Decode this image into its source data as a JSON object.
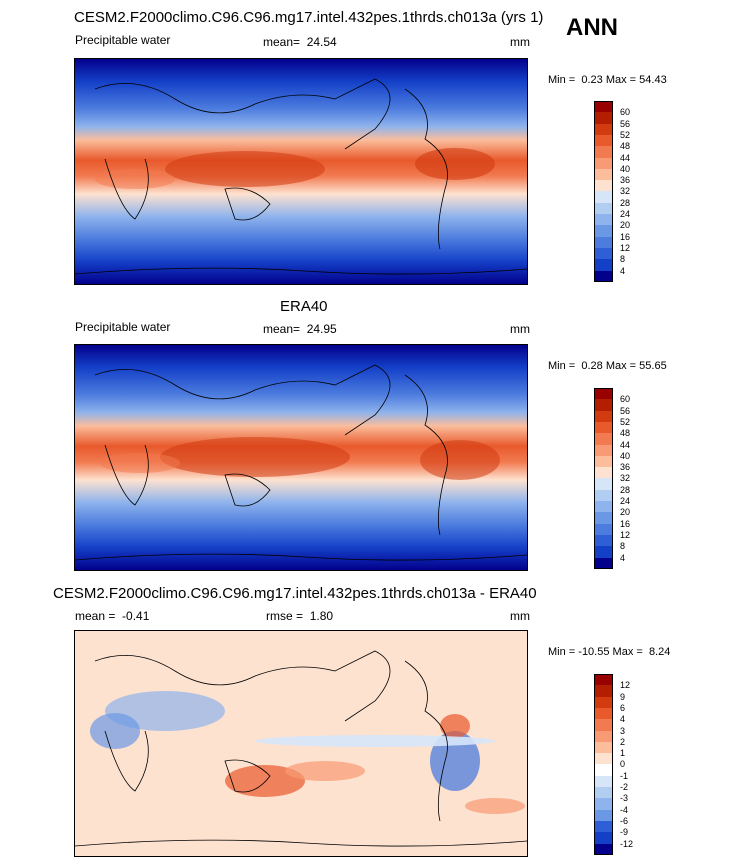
{
  "season_label": "ANN",
  "panels": [
    {
      "id": "model",
      "title": "CESM2.F2000climo.C96.C96.mg17.intel.432pes.1thrds.ch013a (yrs 1)",
      "variable": "Precipitable water",
      "mean_label": "mean=",
      "mean_value": "24.54",
      "units": "mm",
      "min_label": "Min =",
      "min_value": "0.23",
      "max_label": "Max =",
      "max_value": "54.43",
      "levels": [
        "60",
        "56",
        "52",
        "48",
        "44",
        "40",
        "36",
        "32",
        "28",
        "24",
        "20",
        "16",
        "12",
        "8",
        "4"
      ],
      "colors": [
        "#990000",
        "#b31d00",
        "#d23a10",
        "#e85a2c",
        "#f27a50",
        "#f89a74",
        "#fbbd9c",
        "#fde2d0",
        "#d6e6f8",
        "#b2cdf2",
        "#8fb3ec",
        "#6b98e4",
        "#4c7cde",
        "#2f5fd6",
        "#1440c8",
        "#03008c"
      ]
    },
    {
      "id": "obs",
      "title": "ERA40",
      "variable": "Precipitable water",
      "mean_label": "mean=",
      "mean_value": "24.95",
      "units": "mm",
      "min_label": "Min =",
      "min_value": "0.28",
      "max_label": "Max =",
      "max_value": "55.65",
      "levels": [
        "60",
        "56",
        "52",
        "48",
        "44",
        "40",
        "36",
        "32",
        "28",
        "24",
        "20",
        "16",
        "12",
        "8",
        "4"
      ],
      "colors": [
        "#990000",
        "#b31d00",
        "#d23a10",
        "#e85a2c",
        "#f27a50",
        "#f89a74",
        "#fbbd9c",
        "#fde2d0",
        "#d6e6f8",
        "#b2cdf2",
        "#8fb3ec",
        "#6b98e4",
        "#4c7cde",
        "#2f5fd6",
        "#1440c8",
        "#03008c"
      ]
    },
    {
      "id": "diff",
      "title": "CESM2.F2000climo.C96.C96.mg17.intel.432pes.1thrds.ch013a - ERA40",
      "mean_label": "mean =",
      "mean_value": "-0.41",
      "rmse_label": "rmse =",
      "rmse_value": "1.80",
      "units": "mm",
      "min_label": "Min =",
      "min_value": "-10.55",
      "max_label": "Max =",
      "max_value": "8.24",
      "levels": [
        "12",
        "9",
        "6",
        "4",
        "3",
        "2",
        "1",
        "0",
        "-1",
        "-2",
        "-3",
        "-4",
        "-6",
        "-9",
        "-12"
      ],
      "colors": [
        "#990000",
        "#b31d00",
        "#d23a10",
        "#e85a2c",
        "#f27a50",
        "#f89a74",
        "#fbbd9c",
        "#fde2d0",
        "#ffffff",
        "#d6e6f8",
        "#b2cdf2",
        "#8fb3ec",
        "#6b98e4",
        "#2f5fd6",
        "#1440c8",
        "#03008c"
      ]
    }
  ],
  "chart_data": [
    {
      "type": "heatmap",
      "title": "CESM2.F2000climo.C96.C96.mg17.intel.432pes.1thrds.ch013a (yrs 1)",
      "subtitle": "Precipitable water",
      "mean": 24.54,
      "min": 0.23,
      "max": 54.43,
      "units": "mm",
      "colorbar_levels": [
        4,
        8,
        12,
        16,
        20,
        24,
        28,
        32,
        36,
        40,
        44,
        48,
        52,
        56,
        60
      ]
    },
    {
      "type": "heatmap",
      "title": "ERA40",
      "subtitle": "Precipitable water",
      "mean": 24.95,
      "min": 0.28,
      "max": 55.65,
      "units": "mm",
      "colorbar_levels": [
        4,
        8,
        12,
        16,
        20,
        24,
        28,
        32,
        36,
        40,
        44,
        48,
        52,
        56,
        60
      ]
    },
    {
      "type": "heatmap",
      "title": "CESM2.F2000climo.C96.C96.mg17.intel.432pes.1thrds.ch013a - ERA40",
      "mean": -0.41,
      "rmse": 1.8,
      "min": -10.55,
      "max": 8.24,
      "units": "mm",
      "colorbar_levels": [
        -12,
        -9,
        -6,
        -4,
        -3,
        -2,
        -1,
        0,
        1,
        2,
        3,
        4,
        6,
        9,
        12
      ]
    }
  ]
}
